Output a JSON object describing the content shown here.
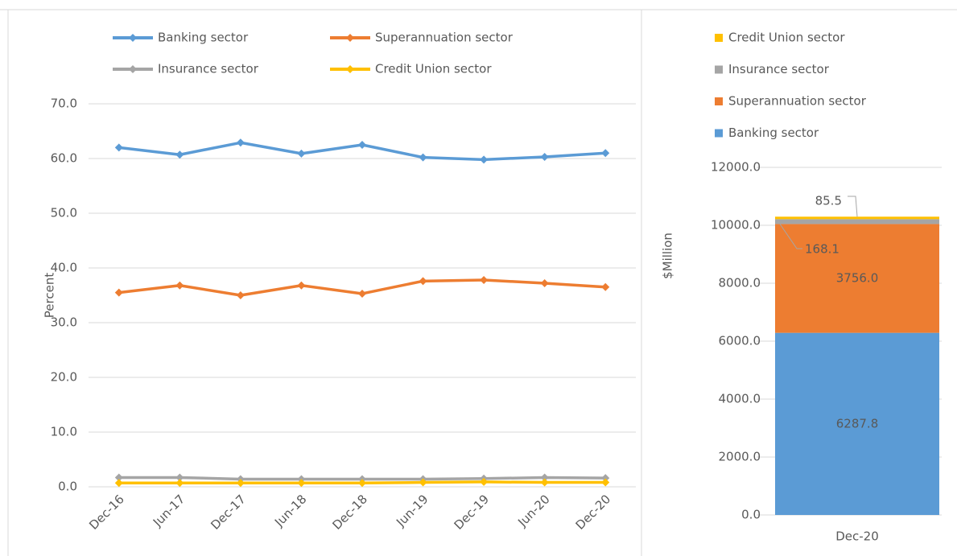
{
  "chart_data": [
    {
      "type": "line",
      "ylabel": "Percent",
      "categories": [
        "Dec-16",
        "Jun-17",
        "Dec-17",
        "Jun-18",
        "Dec-18",
        "Jun-19",
        "Dec-19",
        "Jun-20",
        "Dec-20"
      ],
      "series": [
        {
          "name": "Banking sector",
          "color": "#5b9bd5",
          "values": [
            62.0,
            60.7,
            62.9,
            60.9,
            62.5,
            60.2,
            59.8,
            60.3,
            61.0
          ]
        },
        {
          "name": "Superannuation sector",
          "color": "#ed7d31",
          "values": [
            35.5,
            36.8,
            35.0,
            36.8,
            35.3,
            37.6,
            37.8,
            37.2,
            36.5
          ]
        },
        {
          "name": "Insurance sector",
          "color": "#a5a5a5",
          "values": [
            1.7,
            1.7,
            1.4,
            1.4,
            1.4,
            1.4,
            1.5,
            1.7,
            1.6
          ]
        },
        {
          "name": "Credit Union sector",
          "color": "#ffc000",
          "values": [
            0.7,
            0.7,
            0.7,
            0.7,
            0.7,
            0.8,
            0.9,
            0.8,
            0.8
          ]
        }
      ],
      "ylim": [
        0,
        70
      ],
      "yticks": [
        {
          "value": 0,
          "label": "0.0"
        },
        {
          "value": 10,
          "label": "10.0"
        },
        {
          "value": 20,
          "label": "20.0"
        },
        {
          "value": 30,
          "label": "30.0"
        },
        {
          "value": 40,
          "label": "40.0"
        },
        {
          "value": 50,
          "label": "50.0"
        },
        {
          "value": 60,
          "label": "60.0"
        },
        {
          "value": 70,
          "label": "70.0"
        }
      ],
      "grid": true
    },
    {
      "type": "stacked_bar",
      "ylabel": "$Million",
      "categories": [
        "Dec-20"
      ],
      "series": [
        {
          "name": "Banking sector",
          "color": "#5b9bd5",
          "values": [
            6287.8
          ],
          "value_labels": [
            "6287.8"
          ]
        },
        {
          "name": "Superannuation sector",
          "color": "#ed7d31",
          "values": [
            3756.0
          ],
          "value_labels": [
            "3756.0"
          ]
        },
        {
          "name": "Insurance sector",
          "color": "#a5a5a5",
          "values": [
            168.1
          ],
          "value_labels": [
            "168.1"
          ]
        },
        {
          "name": "Credit Union sector",
          "color": "#ffc000",
          "values": [
            85.5
          ],
          "value_labels": [
            "85.5"
          ]
        }
      ],
      "ylim": [
        0,
        12000
      ],
      "yticks": [
        {
          "value": 0,
          "label": "0.0"
        },
        {
          "value": 2000,
          "label": "2000.0"
        },
        {
          "value": 4000,
          "label": "4000.0"
        },
        {
          "value": 6000,
          "label": "6000.0"
        },
        {
          "value": 8000,
          "label": "8000.0"
        },
        {
          "value": 10000,
          "label": "10000.0"
        },
        {
          "value": 12000,
          "label": "12000.0"
        }
      ],
      "grid": true
    }
  ]
}
